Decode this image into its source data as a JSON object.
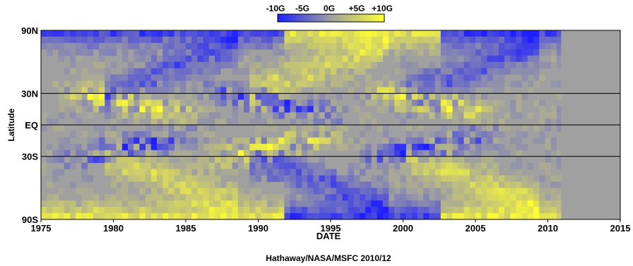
{
  "chart_data": {
    "type": "heatmap",
    "title": "",
    "xlabel": "DATE",
    "ylabel": "Latitude",
    "xlim": [
      1975,
      2015
    ],
    "x_ticks": [
      "1975",
      "1980",
      "1985",
      "1990",
      "1995",
      "2000",
      "2005",
      "2010",
      "2015"
    ],
    "y_ticks": [
      {
        "label": "90N",
        "lat": 90
      },
      {
        "label": "30N",
        "lat": 30
      },
      {
        "label": "EQ",
        "lat": 0
      },
      {
        "label": "30S",
        "lat": -30
      },
      {
        "label": "90S",
        "lat": -90
      }
    ],
    "colorbar": {
      "labels": [
        "-10G",
        "-5G",
        "0G",
        "+5G",
        "+10G"
      ],
      "min": -10,
      "max": 10,
      "unit": "G",
      "colors": [
        "#2a2aff",
        "#8f8fcc",
        "#a0a0a0",
        "#c8c86e",
        "#ffff30"
      ]
    },
    "data_end_year": 2010.9,
    "no_data_color": "#a0a0a0",
    "gridlines_at_lat": [
      30,
      0,
      -30
    ],
    "credit": "Hathaway/NASA/MSFC 2010/12",
    "cycles": [
      {
        "center_year": 1980.5,
        "north_polarity": 1,
        "south_polarity": -1
      },
      {
        "center_year": 1990.6,
        "north_polarity": -1,
        "south_polarity": 1
      },
      {
        "center_year": 2001.3,
        "north_polarity": 1,
        "south_polarity": -1
      }
    ]
  }
}
